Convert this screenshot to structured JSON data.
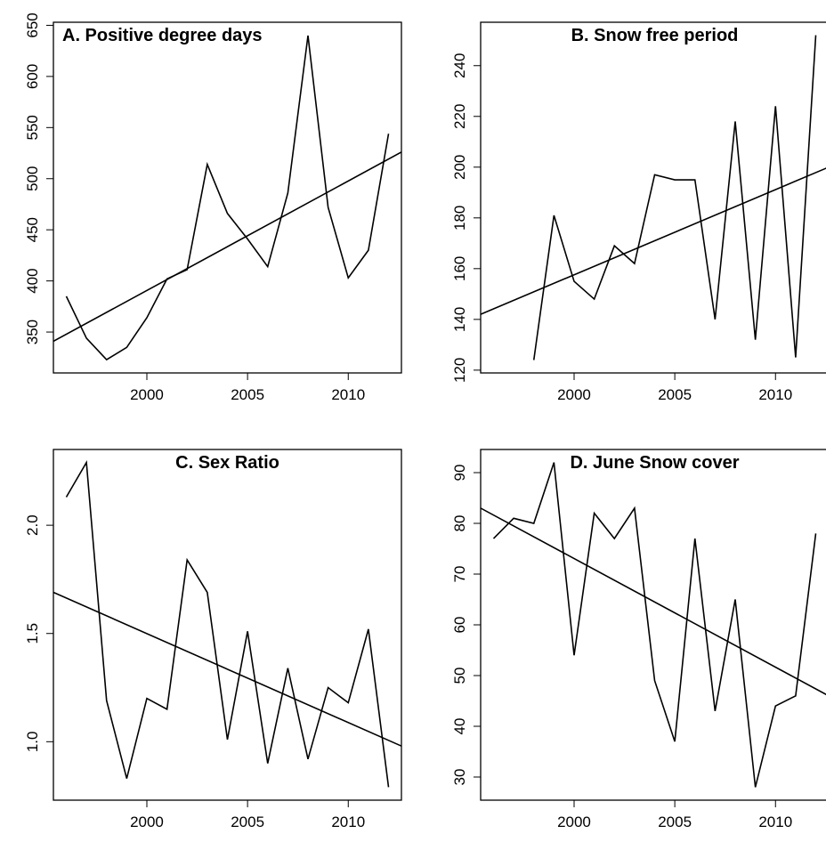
{
  "chart_data": [
    {
      "type": "line",
      "title": "A. Positive degree days",
      "x": [
        1996,
        1997,
        1998,
        1999,
        2000,
        2001,
        2002,
        2003,
        2004,
        2005,
        2006,
        2007,
        2008,
        2009,
        2010,
        2011,
        2012
      ],
      "series": [
        {
          "color": "#000000",
          "values": [
            385,
            344,
            323,
            335,
            364,
            402,
            411,
            514,
            466,
            441,
            414,
            486,
            640,
            472,
            403,
            430,
            544
          ]
        }
      ],
      "trend": {
        "x": [
          1995.36,
          2012.64
        ],
        "values": [
          341,
          526
        ]
      },
      "xlim": [
        1995.36,
        2012.64
      ],
      "xticks": [
        2000,
        2005,
        2010
      ],
      "ylim": [
        310,
        653
      ],
      "yticks": [
        350,
        400,
        450,
        500,
        550,
        600,
        650
      ]
    },
    {
      "type": "line",
      "title": "B. Snow free period",
      "x": [
        1996,
        1997,
        1998,
        1999,
        2000,
        2001,
        2002,
        2003,
        2004,
        2005,
        2006,
        2007,
        2008,
        2009,
        2010,
        2011,
        2012
      ],
      "series": [
        {
          "color": "#000000",
          "values": [
            null,
            null,
            124,
            181,
            155,
            148,
            169,
            162,
            197,
            195,
            195,
            140,
            218,
            132,
            224,
            125,
            252
          ]
        }
      ],
      "trend": {
        "x": [
          1995.36,
          2012.64
        ],
        "values": [
          142,
          200
        ]
      },
      "xlim": [
        1995.36,
        2012.64
      ],
      "xticks": [
        2000,
        2005,
        2010
      ],
      "ylim": [
        118.9,
        257.1
      ],
      "yticks": [
        120,
        140,
        160,
        180,
        200,
        220,
        240
      ]
    },
    {
      "type": "line",
      "title": "C. Sex Ratio",
      "x": [
        1996,
        1997,
        1998,
        1999,
        2000,
        2001,
        2002,
        2003,
        2004,
        2005,
        2006,
        2007,
        2008,
        2009,
        2010,
        2011,
        2012
      ],
      "series": [
        {
          "color": "#000000",
          "values": [
            2.13,
            2.29,
            1.19,
            0.83,
            1.2,
            1.15,
            1.84,
            1.69,
            1.01,
            1.51,
            0.9,
            1.34,
            0.92,
            1.25,
            1.18,
            1.52,
            0.79
          ]
        }
      ],
      "trend": {
        "x": [
          1995.36,
          2012.64
        ],
        "values": [
          1.69,
          0.98
        ]
      },
      "xlim": [
        1995.36,
        2012.64
      ],
      "xticks": [
        2000,
        2005,
        2010
      ],
      "ylim": [
        0.73,
        2.35
      ],
      "yticks": [
        {
          "value": 1,
          "label": "1.0"
        },
        1.5,
        {
          "value": 2,
          "label": "2.0"
        }
      ]
    },
    {
      "type": "line",
      "title": "D. June Snow cover",
      "x": [
        1996,
        1997,
        1998,
        1999,
        2000,
        2001,
        2002,
        2003,
        2004,
        2005,
        2006,
        2007,
        2008,
        2009,
        2010,
        2011,
        2012
      ],
      "series": [
        {
          "color": "#000000",
          "values": [
            77,
            81,
            80,
            92,
            54,
            82,
            77,
            83,
            49,
            37,
            77,
            43,
            65,
            28,
            44,
            46,
            78
          ]
        }
      ],
      "trend": {
        "x": [
          1995.36,
          2012.64
        ],
        "values": [
          83,
          46
        ]
      },
      "xlim": [
        1995.36,
        2012.64
      ],
      "xticks": [
        2000,
        2005,
        2010
      ],
      "ylim": [
        25.44,
        94.56
      ],
      "yticks": [
        30,
        40,
        50,
        60,
        70,
        80,
        90
      ]
    }
  ]
}
